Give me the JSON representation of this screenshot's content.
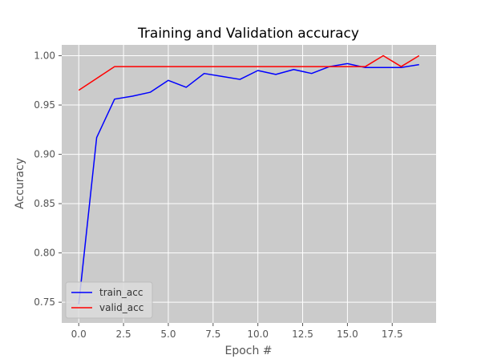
{
  "chart_data": {
    "type": "line",
    "title": "Training and Validation accuracy",
    "xlabel": "Epoch #",
    "ylabel": "Accuracy",
    "xlim": [
      -0.95,
      19.95
    ],
    "ylim": [
      0.729,
      1.011
    ],
    "xticks": [
      0.0,
      2.5,
      5.0,
      7.5,
      10.0,
      12.5,
      15.0,
      17.5
    ],
    "xtick_labels": [
      "0.0",
      "2.5",
      "5.0",
      "7.5",
      "10.0",
      "12.5",
      "15.0",
      "17.5"
    ],
    "yticks": [
      0.75,
      0.8,
      0.85,
      0.9,
      0.95,
      1.0
    ],
    "ytick_labels": [
      "0.75",
      "0.80",
      "0.85",
      "0.90",
      "0.95",
      "1.00"
    ],
    "grid": true,
    "legend_position": "lower-left",
    "background_color": "#cbcbcb",
    "grid_color": "#ffffff",
    "x": [
      0,
      1,
      2,
      3,
      4,
      5,
      6,
      7,
      8,
      9,
      10,
      11,
      12,
      13,
      14,
      15,
      16,
      17,
      18,
      19
    ],
    "series": [
      {
        "name": "train_acc",
        "color": "#0000ff",
        "values": [
          0.748,
          0.917,
          0.956,
          0.959,
          0.963,
          0.975,
          0.968,
          0.982,
          0.979,
          0.976,
          0.985,
          0.981,
          0.986,
          0.982,
          0.989,
          0.992,
          0.988,
          0.988,
          0.988,
          0.991
        ]
      },
      {
        "name": "valid_acc",
        "color": "#ff0000",
        "values": [
          0.965,
          0.977,
          0.989,
          0.989,
          0.989,
          0.989,
          0.989,
          0.989,
          0.989,
          0.989,
          0.989,
          0.989,
          0.989,
          0.989,
          0.989,
          0.989,
          0.989,
          1.0,
          0.989,
          1.0
        ]
      }
    ]
  }
}
